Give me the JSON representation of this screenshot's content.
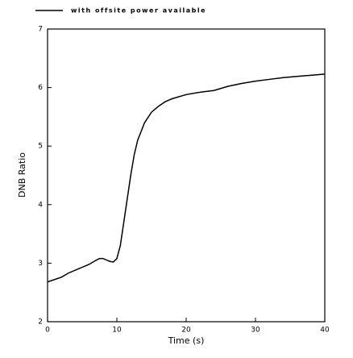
{
  "chart_data": {
    "type": "line",
    "x_label": "Time  (s)",
    "y_label": "DNB Ratio",
    "x": [
      0,
      2,
      3,
      5,
      6,
      7,
      7.5,
      8,
      9,
      9.5,
      10,
      10.5,
      11,
      11.5,
      12,
      12.5,
      13,
      14,
      15,
      16,
      17,
      18,
      20,
      22,
      24,
      26,
      28,
      30,
      32,
      34,
      36,
      38,
      40
    ],
    "series": [
      {
        "name": "with offsite power available",
        "color": "#000000",
        "values": [
          2.68,
          2.76,
          2.83,
          2.93,
          2.98,
          3.05,
          3.08,
          3.08,
          3.03,
          3.02,
          3.08,
          3.3,
          3.7,
          4.1,
          4.5,
          4.85,
          5.1,
          5.4,
          5.58,
          5.68,
          5.76,
          5.81,
          5.88,
          5.92,
          5.95,
          6.02,
          6.07,
          6.11,
          6.14,
          6.17,
          6.19,
          6.21,
          6.23
        ]
      }
    ],
    "xlim": [
      0,
      40
    ],
    "xticks": [
      0,
      10,
      20,
      30,
      40
    ],
    "ylim": [
      2,
      7
    ],
    "yticks": [
      2,
      3,
      4,
      5,
      6,
      7
    ]
  }
}
